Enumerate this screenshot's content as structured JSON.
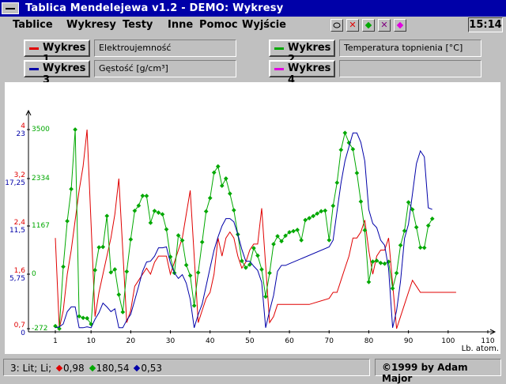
{
  "window": {
    "title": "Tablica Mendelejewa v1.2 - DEMO: Wykresy"
  },
  "menu": [
    "Tablice",
    "Wykresy",
    "Testy",
    "Inne",
    "Pomoc",
    "Wyjście"
  ],
  "clock": "15:14",
  "toolbar_icons": [
    "circle-icon",
    "close-red-icon",
    "green-dot-icon",
    "close-purple-icon",
    "magenta-dot-icon"
  ],
  "series_panel": [
    {
      "button": "Wykres 1",
      "field": "Elektroujemność",
      "color": "#e00000"
    },
    {
      "button": "Wykres 2",
      "field": "Temperatura topnienia [°C]",
      "color": "#00a800"
    },
    {
      "button": "Wykres 3",
      "field": "Gęstość [g/cm³]",
      "color": "#0000a8"
    },
    {
      "button": "Wykres 4",
      "field": "",
      "color": "#e000e0"
    }
  ],
  "status": {
    "element": "3: Lit; Li;",
    "v1": "0,98",
    "v2": "180,54",
    "v3": "0,53",
    "copyright": "©1999 by Adam Major"
  },
  "chart_data": {
    "type": "line",
    "xlabel": "Lb. atom.",
    "x_ticks": [
      1,
      10,
      20,
      30,
      40,
      50,
      60,
      70,
      80,
      90,
      100,
      110
    ],
    "xlim": [
      1,
      110
    ],
    "axes": [
      {
        "color": "#e00000",
        "ticks": [
          "0,7",
          "1,6",
          "2,4",
          "3,2",
          "4"
        ],
        "values": [
          0.7,
          1.6,
          2.4,
          3.2,
          4.0
        ]
      },
      {
        "color": "#0000a8",
        "ticks": [
          "0",
          "5,75",
          "11,5",
          "17,25",
          "23"
        ],
        "values": [
          0,
          5.75,
          11.5,
          17.25,
          23
        ]
      },
      {
        "color": "#00a800",
        "ticks": [
          "-272",
          "0",
          "1167",
          "2334",
          "3500"
        ],
        "values": [
          -272,
          0,
          1167,
          2334,
          3500
        ]
      }
    ],
    "series": [
      {
        "name": "Elektroujemność",
        "color": "#e00000",
        "points": [
          [
            1,
            2.2
          ],
          [
            2,
            0.7
          ],
          [
            3,
            1
          ],
          [
            4,
            1.6
          ],
          [
            5,
            2
          ],
          [
            6,
            2.5
          ],
          [
            7,
            3
          ],
          [
            8,
            3.4
          ],
          [
            9,
            4
          ],
          [
            11,
            0.9
          ],
          [
            12,
            1.3
          ],
          [
            13,
            1.6
          ],
          [
            14,
            1.9
          ],
          [
            15,
            2.2
          ],
          [
            16,
            2.6
          ],
          [
            17,
            3.2
          ],
          [
            19,
            0.8
          ],
          [
            20,
            1
          ],
          [
            21,
            1.4
          ],
          [
            22,
            1.5
          ],
          [
            23,
            1.6
          ],
          [
            24,
            1.7
          ],
          [
            25,
            1.6
          ],
          [
            26,
            1.8
          ],
          [
            27,
            1.9
          ],
          [
            28,
            1.9
          ],
          [
            29,
            1.9
          ],
          [
            30,
            1.6
          ],
          [
            31,
            1.8
          ],
          [
            32,
            2
          ],
          [
            33,
            2.2
          ],
          [
            34,
            2.6
          ],
          [
            35,
            3
          ],
          [
            37,
            0.8
          ],
          [
            38,
            1
          ],
          [
            39,
            1.2
          ],
          [
            40,
            1.3
          ],
          [
            41,
            1.6
          ],
          [
            42,
            2.2
          ],
          [
            43,
            1.9
          ],
          [
            44,
            2.2
          ],
          [
            45,
            2.3
          ],
          [
            46,
            2.2
          ],
          [
            47,
            1.9
          ],
          [
            48,
            1.7
          ],
          [
            49,
            1.8
          ],
          [
            50,
            2
          ],
          [
            51,
            2.1
          ],
          [
            52,
            2.1
          ],
          [
            53,
            2.7
          ],
          [
            55,
            0.8
          ],
          [
            56,
            0.9
          ],
          [
            57,
            1.1
          ],
          [
            58,
            1.1
          ],
          [
            59,
            1.1
          ],
          [
            60,
            1.1
          ],
          [
            65,
            1.1
          ],
          [
            70,
            1.2
          ],
          [
            71,
            1.3
          ],
          [
            72,
            1.3
          ],
          [
            73,
            1.5
          ],
          [
            74,
            1.7
          ],
          [
            75,
            1.9
          ],
          [
            76,
            2.2
          ],
          [
            77,
            2.2
          ],
          [
            78,
            2.3
          ],
          [
            79,
            2.5
          ],
          [
            80,
            2
          ],
          [
            81,
            1.6
          ],
          [
            82,
            1.9
          ],
          [
            83,
            2
          ],
          [
            84,
            2
          ],
          [
            85,
            2.2
          ],
          [
            87,
            0.7
          ],
          [
            88,
            0.9
          ],
          [
            89,
            1.1
          ],
          [
            90,
            1.3
          ],
          [
            91,
            1.5
          ],
          [
            92,
            1.4
          ],
          [
            93,
            1.3
          ],
          [
            95,
            1.3
          ],
          [
            100,
            1.3
          ],
          [
            102,
            1.3
          ]
        ]
      },
      {
        "name": "Temperatura topnienia [°C]",
        "color": "#00a800",
        "points": [
          [
            1,
            -259
          ],
          [
            2,
            -272
          ],
          [
            3,
            181
          ],
          [
            4,
            1287
          ],
          [
            5,
            2076
          ],
          [
            6,
            3500
          ],
          [
            7,
            -210
          ],
          [
            8,
            -218
          ],
          [
            9,
            -220
          ],
          [
            10,
            -249
          ],
          [
            11,
            98
          ],
          [
            12,
            650
          ],
          [
            13,
            660
          ],
          [
            14,
            1414
          ],
          [
            15,
            44
          ],
          [
            16,
            115
          ],
          [
            17,
            -102
          ],
          [
            18,
            -189
          ],
          [
            19,
            64
          ],
          [
            20,
            842
          ],
          [
            21,
            1541
          ],
          [
            22,
            1668
          ],
          [
            23,
            1910
          ],
          [
            24,
            1907
          ],
          [
            25,
            1246
          ],
          [
            26,
            1538
          ],
          [
            27,
            1495
          ],
          [
            28,
            1455
          ],
          [
            29,
            1085
          ],
          [
            30,
            420
          ],
          [
            31,
            30
          ],
          [
            32,
            938
          ],
          [
            33,
            817
          ],
          [
            34,
            221
          ],
          [
            35,
            -7
          ],
          [
            36,
            -157
          ],
          [
            37,
            39
          ],
          [
            38,
            777
          ],
          [
            39,
            1526
          ],
          [
            40,
            1855
          ],
          [
            41,
            2477
          ],
          [
            42,
            2623
          ],
          [
            43,
            2157
          ],
          [
            44,
            2334
          ],
          [
            45,
            1964
          ],
          [
            46,
            1555
          ],
          [
            47,
            962
          ],
          [
            48,
            321
          ],
          [
            49,
            157
          ],
          [
            50,
            232
          ],
          [
            51,
            631
          ],
          [
            52,
            450
          ],
          [
            53,
            114
          ],
          [
            54,
            -112
          ],
          [
            55,
            28
          ],
          [
            56,
            727
          ],
          [
            57,
            920
          ],
          [
            58,
            798
          ],
          [
            59,
            931
          ],
          [
            60,
            1016
          ],
          [
            61,
            1042
          ],
          [
            62,
            1072
          ],
          [
            63,
            822
          ],
          [
            64,
            1313
          ],
          [
            65,
            1359
          ],
          [
            66,
            1412
          ],
          [
            67,
            1472
          ],
          [
            68,
            1529
          ],
          [
            69,
            1545
          ],
          [
            70,
            824
          ],
          [
            71,
            1663
          ],
          [
            72,
            2233
          ],
          [
            73,
            3017
          ],
          [
            74,
            3422
          ],
          [
            75,
            3186
          ],
          [
            76,
            3033
          ],
          [
            77,
            2466
          ],
          [
            78,
            1768
          ],
          [
            79,
            1064
          ],
          [
            80,
            -39
          ],
          [
            81,
            304
          ],
          [
            82,
            327
          ],
          [
            83,
            271
          ],
          [
            84,
            254
          ],
          [
            85,
            302
          ],
          [
            86,
            -71
          ],
          [
            87,
            27
          ],
          [
            88,
            700
          ],
          [
            89,
            1051
          ],
          [
            90,
            1750
          ],
          [
            91,
            1572
          ],
          [
            92,
            1135
          ],
          [
            93,
            644
          ],
          [
            94,
            640
          ],
          [
            95,
            1176
          ],
          [
            96,
            1345
          ]
        ]
      },
      {
        "name": "Gęstość [g/cm³]",
        "color": "#0000a8",
        "points": [
          [
            1,
            0.1
          ],
          [
            2,
            0.2
          ],
          [
            3,
            0.5
          ],
          [
            4,
            1.8
          ],
          [
            5,
            2.3
          ],
          [
            6,
            2.3
          ],
          [
            7,
            0.1
          ],
          [
            8,
            0.1
          ],
          [
            9,
            0.2
          ],
          [
            10,
            0.1
          ],
          [
            11,
            1
          ],
          [
            12,
            1.7
          ],
          [
            13,
            2.7
          ],
          [
            14,
            2.3
          ],
          [
            15,
            1.8
          ],
          [
            16,
            2.1
          ],
          [
            17,
            0.1
          ],
          [
            18,
            0.1
          ],
          [
            19,
            0.9
          ],
          [
            20,
            1.5
          ],
          [
            21,
            3
          ],
          [
            22,
            4.5
          ],
          [
            23,
            6.1
          ],
          [
            24,
            7.2
          ],
          [
            25,
            7.3
          ],
          [
            26,
            7.9
          ],
          [
            27,
            8.9
          ],
          [
            28,
            8.9
          ],
          [
            29,
            9
          ],
          [
            30,
            7.1
          ],
          [
            31,
            5.9
          ],
          [
            32,
            5.3
          ],
          [
            33,
            5.7
          ],
          [
            34,
            4.8
          ],
          [
            35,
            3.1
          ],
          [
            36,
            0.1
          ],
          [
            37,
            1.5
          ],
          [
            38,
            2.6
          ],
          [
            39,
            4.5
          ],
          [
            40,
            6.5
          ],
          [
            41,
            8.6
          ],
          [
            42,
            10.2
          ],
          [
            43,
            11.5
          ],
          [
            44,
            12.4
          ],
          [
            45,
            12.4
          ],
          [
            46,
            12
          ],
          [
            47,
            10.5
          ],
          [
            48,
            8.7
          ],
          [
            49,
            7.3
          ],
          [
            50,
            7.3
          ],
          [
            51,
            6.7
          ],
          [
            52,
            6.2
          ],
          [
            53,
            4.9
          ],
          [
            54,
            0.1
          ],
          [
            55,
            1.9
          ],
          [
            56,
            3.5
          ],
          [
            57,
            6.1
          ],
          [
            58,
            6.8
          ],
          [
            59,
            6.8
          ],
          [
            60,
            7
          ],
          [
            70,
            9
          ],
          [
            71,
            9.8
          ],
          [
            72,
            13.3
          ],
          [
            73,
            16.7
          ],
          [
            74,
            19.3
          ],
          [
            75,
            21
          ],
          [
            76,
            22.6
          ],
          [
            77,
            22.6
          ],
          [
            78,
            21.5
          ],
          [
            79,
            19.3
          ],
          [
            80,
            13.5
          ],
          [
            81,
            11.8
          ],
          [
            82,
            11.3
          ],
          [
            83,
            9.8
          ],
          [
            84,
            9.2
          ],
          [
            85,
            6.4
          ],
          [
            86,
            0.1
          ],
          [
            87,
            1.9
          ],
          [
            88,
            5
          ],
          [
            89,
            10
          ],
          [
            90,
            11.7
          ],
          [
            91,
            15.4
          ],
          [
            92,
            19
          ],
          [
            93,
            20.5
          ],
          [
            94,
            19.8
          ],
          [
            95,
            13.7
          ],
          [
            96,
            13.5
          ]
        ]
      }
    ]
  }
}
